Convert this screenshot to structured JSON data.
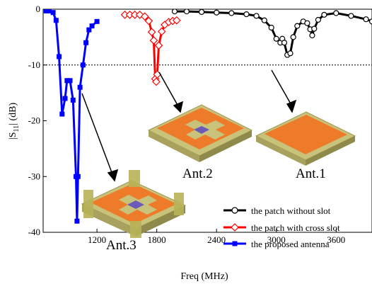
{
  "chart_data": {
    "type": "line",
    "xlabel": "Freq (MHz)",
    "ylabel_main": "|S",
    "ylabel_sub": "11",
    "ylabel_end": "| (dB)",
    "xlim": [
      660,
      3960
    ],
    "ylim": [
      -40,
      0
    ],
    "x_ticks": [
      1200,
      1800,
      2400,
      3000,
      3600
    ],
    "y_ticks": [
      0,
      -10,
      -20,
      -30,
      -40
    ],
    "reference_line": {
      "y": -10,
      "style": "dotted"
    },
    "series": [
      {
        "name": "the patch without slot",
        "color": "#000000",
        "marker": "circle",
        "points": [
          [
            1980,
            -0.4
          ],
          [
            2100,
            -0.4
          ],
          [
            2250,
            -0.5
          ],
          [
            2400,
            -0.6
          ],
          [
            2550,
            -0.7
          ],
          [
            2700,
            -0.9
          ],
          [
            2800,
            -1.2
          ],
          [
            2880,
            -2.0
          ],
          [
            2950,
            -3.3
          ],
          [
            3000,
            -5.3
          ],
          [
            3040,
            -6.0
          ],
          [
            3060,
            -5.3
          ],
          [
            3080,
            -6.0
          ],
          [
            3110,
            -8.2
          ],
          [
            3140,
            -7.9
          ],
          [
            3170,
            -5.0
          ],
          [
            3210,
            -3.0
          ],
          [
            3270,
            -2.2
          ],
          [
            3310,
            -2.5
          ],
          [
            3340,
            -3.6
          ],
          [
            3360,
            -4.7
          ],
          [
            3380,
            -3.5
          ],
          [
            3420,
            -1.9
          ],
          [
            3480,
            -1.0
          ],
          [
            3600,
            -0.7
          ],
          [
            3750,
            -1.2
          ],
          [
            3900,
            -1.8
          ],
          [
            3960,
            -2.2
          ]
        ]
      },
      {
        "name": "the patch with cross slot",
        "color": "#ff0000",
        "marker": "diamond",
        "points": [
          [
            1480,
            -1.0
          ],
          [
            1530,
            -1.0
          ],
          [
            1580,
            -1.0
          ],
          [
            1630,
            -1.0
          ],
          [
            1680,
            -1.3
          ],
          [
            1720,
            -2.1
          ],
          [
            1750,
            -4.1
          ],
          [
            1770,
            -5.6
          ],
          [
            1785,
            -12.5
          ],
          [
            1795,
            -13.0
          ],
          [
            1805,
            -11.7
          ],
          [
            1820,
            -6.5
          ],
          [
            1850,
            -4.0
          ],
          [
            1880,
            -2.8
          ],
          [
            1920,
            -2.3
          ],
          [
            1960,
            -2.1
          ],
          [
            2000,
            -2.0
          ]
        ]
      },
      {
        "name": "the proposed antenna",
        "color": "#0000ff",
        "marker": "square",
        "points": [
          [
            690,
            -0.3
          ],
          [
            720,
            -0.3
          ],
          [
            760,
            -0.6
          ],
          [
            790,
            -2.0
          ],
          [
            820,
            -8.5
          ],
          [
            850,
            -18.8
          ],
          [
            880,
            -16.0
          ],
          [
            900,
            -12.8
          ],
          [
            930,
            -12.8
          ],
          [
            960,
            -16.3
          ],
          [
            990,
            -30.0
          ],
          [
            1000,
            -38.0
          ],
          [
            1010,
            -30.0
          ],
          [
            1030,
            -14.0
          ],
          [
            1060,
            -10.0
          ],
          [
            1090,
            -6.0
          ],
          [
            1120,
            -3.7
          ],
          [
            1150,
            -3.0
          ],
          [
            1200,
            -2.2
          ]
        ]
      }
    ],
    "annotations": [
      "Ant.1",
      "Ant.2",
      "Ant.3"
    ]
  },
  "legend": {
    "items": [
      {
        "label": "the patch without slot",
        "color": "#000000",
        "marker": "circle"
      },
      {
        "label": "the patch with cross slot",
        "color": "#ff0000",
        "marker": "diamond"
      },
      {
        "label": "the proposed antenna",
        "color": "#0000ff",
        "marker": "square"
      }
    ]
  },
  "insets": {
    "ant1_label": "Ant.1",
    "ant2_label": "Ant.2",
    "ant3_label": "Ant.3",
    "colors": {
      "substrate": "#c9c27a",
      "substrate_edge": "#9d9650",
      "patch": "#ee7b2a",
      "patch_dark": "#d5631a",
      "slot": "#6b5ab8",
      "wall": "#b7b258"
    }
  }
}
